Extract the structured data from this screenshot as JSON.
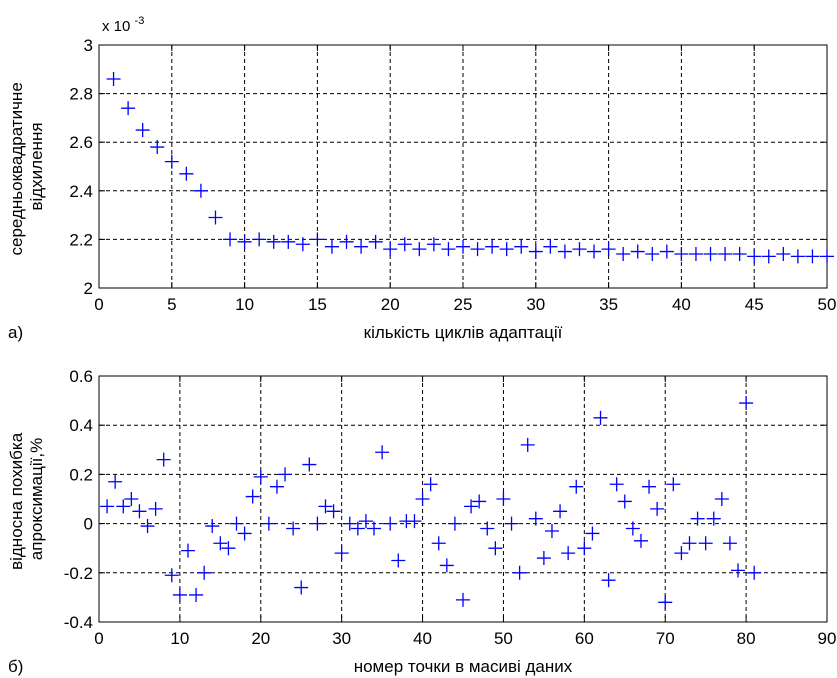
{
  "chart_data": [
    {
      "type": "scatter",
      "panel_label": "а)",
      "xlabel": "кількість циклів адаптації",
      "ylabel_lines": [
        "середньоквадратичне",
        "відхилення"
      ],
      "exponent_label": "x 10",
      "exponent_power": "-3",
      "xlim": [
        0,
        50
      ],
      "ylim": [
        2.0,
        3.0
      ],
      "xticks": [
        0,
        5,
        10,
        15,
        20,
        25,
        30,
        35,
        40,
        45,
        50
      ],
      "yticks": [
        2.0,
        2.2,
        2.4,
        2.6,
        2.8,
        3.0
      ],
      "ytick_labels": [
        "2",
        "2.2",
        "2.4",
        "2.6",
        "2.8",
        "3"
      ],
      "grid": true,
      "marker": "+",
      "color": "#0000ff",
      "series": [
        {
          "x": [
            1,
            2,
            3,
            4,
            5,
            6,
            7,
            8,
            9,
            10,
            11,
            12,
            13,
            14,
            15,
            16,
            17,
            18,
            19,
            20,
            21,
            22,
            23,
            24,
            25,
            26,
            27,
            28,
            29,
            30,
            31,
            32,
            33,
            34,
            35,
            36,
            37,
            38,
            39,
            40,
            41,
            42,
            43,
            44,
            45,
            46,
            47,
            48,
            49,
            50
          ],
          "y": [
            2.86,
            2.74,
            2.65,
            2.58,
            2.52,
            2.47,
            2.4,
            2.29,
            2.2,
            2.19,
            2.2,
            2.19,
            2.19,
            2.18,
            2.2,
            2.17,
            2.19,
            2.17,
            2.19,
            2.16,
            2.18,
            2.16,
            2.18,
            2.16,
            2.17,
            2.16,
            2.17,
            2.16,
            2.17,
            2.15,
            2.17,
            2.15,
            2.16,
            2.15,
            2.16,
            2.14,
            2.15,
            2.14,
            2.15,
            2.14,
            2.14,
            2.14,
            2.14,
            2.14,
            2.13,
            2.13,
            2.14,
            2.13,
            2.13,
            2.13
          ]
        }
      ]
    },
    {
      "type": "scatter",
      "panel_label": "б)",
      "xlabel": "номер точки в масиві даних",
      "ylabel_lines": [
        "відносна похибка",
        "апроксимації,%"
      ],
      "xlim": [
        0,
        90
      ],
      "ylim": [
        -0.4,
        0.6
      ],
      "xticks": [
        0,
        10,
        20,
        30,
        40,
        50,
        60,
        70,
        80,
        90
      ],
      "yticks": [
        -0.4,
        -0.2,
        0,
        0.2,
        0.4,
        0.6
      ],
      "ytick_labels": [
        "-0.4",
        "-0.2",
        "0",
        "0.2",
        "0.4",
        "0.6"
      ],
      "grid": true,
      "marker": "+",
      "color": "#0000ff",
      "series": [
        {
          "x": [
            1,
            2,
            3,
            4,
            5,
            6,
            7,
            8,
            9,
            10,
            11,
            12,
            13,
            14,
            15,
            16,
            17,
            18,
            19,
            20,
            21,
            22,
            23,
            24,
            25,
            26,
            27,
            28,
            29,
            30,
            31,
            32,
            33,
            34,
            35,
            36,
            37,
            38,
            39,
            40,
            41,
            42,
            43,
            44,
            45,
            46,
            47,
            48,
            49,
            50,
            51,
            52,
            53,
            54,
            55,
            56,
            57,
            58,
            59,
            60,
            61,
            62,
            63,
            64,
            65,
            66,
            67,
            68,
            69,
            70,
            71,
            72,
            73,
            74,
            75,
            76,
            77,
            78,
            79,
            80,
            81
          ],
          "y": [
            0.07,
            0.17,
            0.07,
            0.1,
            0.05,
            -0.01,
            0.06,
            0.26,
            -0.21,
            -0.29,
            -0.11,
            -0.29,
            -0.2,
            -0.01,
            -0.08,
            -0.1,
            0.0,
            -0.04,
            0.11,
            0.19,
            0.0,
            0.15,
            0.2,
            -0.02,
            -0.26,
            0.24,
            0.0,
            0.07,
            0.05,
            -0.12,
            0.0,
            -0.02,
            0.01,
            -0.02,
            0.29,
            0.0,
            -0.15,
            0.01,
            0.01,
            0.1,
            0.16,
            -0.08,
            -0.17,
            0.0,
            -0.31,
            0.07,
            0.09,
            -0.02,
            -0.1,
            0.1,
            0.0,
            -0.2,
            0.32,
            0.02,
            -0.14,
            -0.03,
            0.05,
            -0.12,
            0.15,
            -0.1,
            -0.04,
            0.43,
            -0.23,
            0.16,
            0.09,
            -0.02,
            -0.07,
            0.15,
            0.06,
            -0.32,
            0.16,
            -0.12,
            -0.08,
            0.02,
            -0.08,
            0.02,
            0.1,
            -0.08,
            -0.19,
            0.49,
            -0.2
          ]
        }
      ]
    }
  ]
}
